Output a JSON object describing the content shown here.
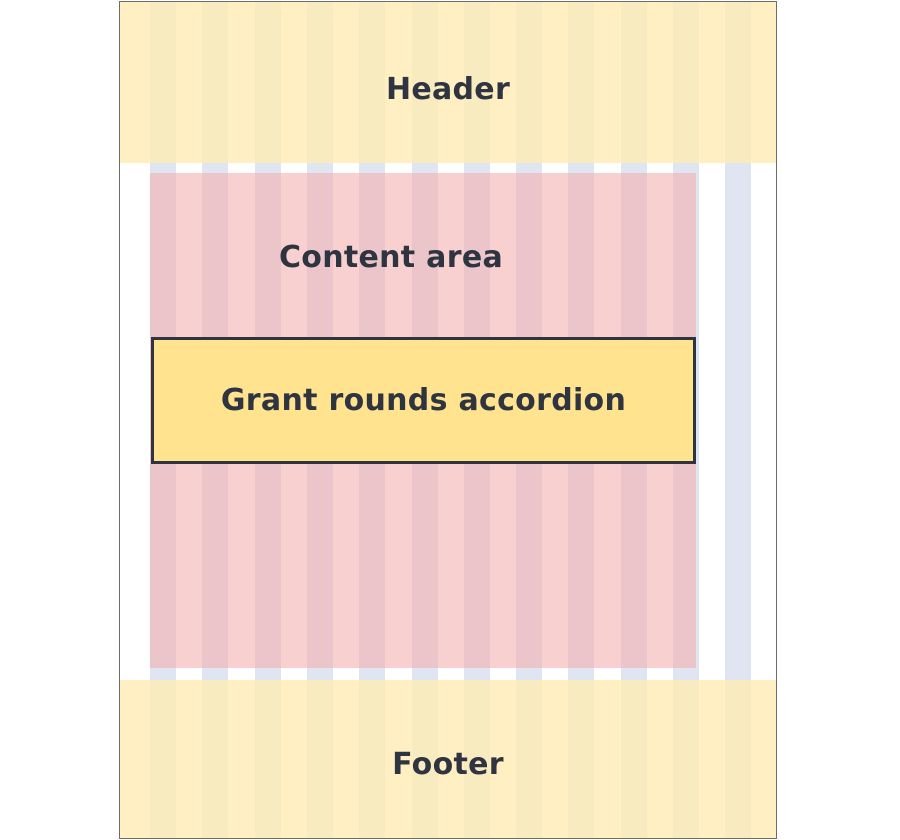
{
  "layout_diagram": {
    "header_label": "Header",
    "content_label": "Content area",
    "component_label": "Grant rounds accordion",
    "footer_label": "Footer",
    "grid_column_count": 12
  },
  "colors": {
    "grid_column": "#dfe6f1",
    "header_footer_band": "#ffecb4",
    "content_area": "#f4aaaa",
    "component_fill": "#ffe38f",
    "component_border": "#2f3441",
    "text": "#2f3441"
  }
}
